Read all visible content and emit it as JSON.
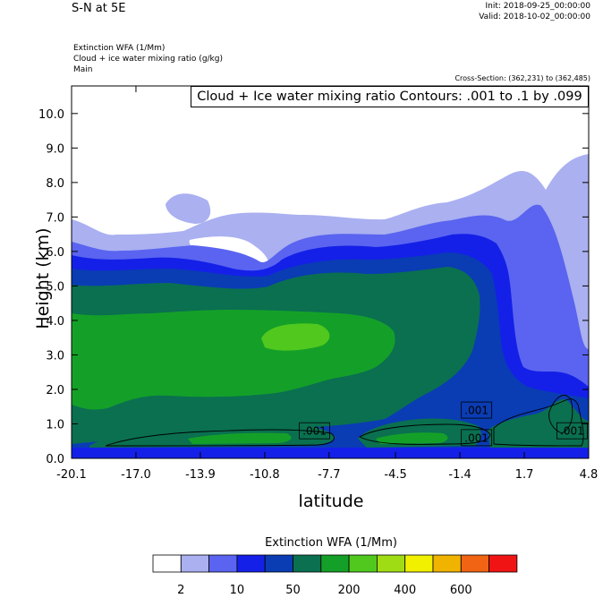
{
  "header": {
    "title": "S-N at 5E",
    "init": "Init: 2018-09-25_00:00:00",
    "valid": "Valid: 2018-10-02_00:00:00",
    "field1": "Extinction WFA   (1/Mm)",
    "field2": "Cloud + ice water mixing ratio   (g/kg)",
    "field3": "Main",
    "cross_section": "Cross-Section: (362,231) to (362,485)",
    "contour_info": "Cloud + Ice water mixing ratio Contours: .001 to .1 by .099"
  },
  "chart_data": {
    "type": "heatmap",
    "xlabel": "latitude",
    "ylabel": "Height (km)",
    "xlim": [
      -20.1,
      4.8
    ],
    "ylim": [
      0.0,
      10.8
    ],
    "xticks": [
      -20.1,
      -17.0,
      -13.9,
      -10.8,
      -7.7,
      -4.5,
      -1.4,
      1.7,
      4.8
    ],
    "xtick_labels": [
      "-20.1",
      "-17.0",
      "-13.9",
      "-10.8",
      "-7.7",
      "-4.5",
      "-1.4",
      "1.7",
      "4.8"
    ],
    "yticks": [
      0,
      1,
      2,
      3,
      4,
      5,
      6,
      7,
      8,
      9,
      10
    ],
    "ytick_labels": [
      "0.0",
      "1.0",
      "2.0",
      "3.0",
      "4.0",
      "5.0",
      "6.0",
      "7.0",
      "8.0",
      "9.0",
      "10.0"
    ],
    "contour_labels": [
      {
        "text": ".001",
        "x": -8.4,
        "y": 0.8
      },
      {
        "text": ".001",
        "x": -0.6,
        "y": 1.4
      },
      {
        "text": ".001",
        "x": -0.6,
        "y": 0.6
      },
      {
        "text": ".001",
        "x": 4.0,
        "y": 0.8
      }
    ],
    "colorbar": {
      "title": "Extinction WFA  (1/Mm)",
      "colors": [
        "#ffffff",
        "#aab0f0",
        "#5a64f0",
        "#1420e8",
        "#0a3cb4",
        "#0a7050",
        "#14a028",
        "#50c81e",
        "#a0dc14",
        "#f0f000",
        "#f0b400",
        "#f06414",
        "#f01414"
      ],
      "labels": [
        "2",
        "10",
        "50",
        "200",
        "400",
        "600"
      ]
    }
  }
}
